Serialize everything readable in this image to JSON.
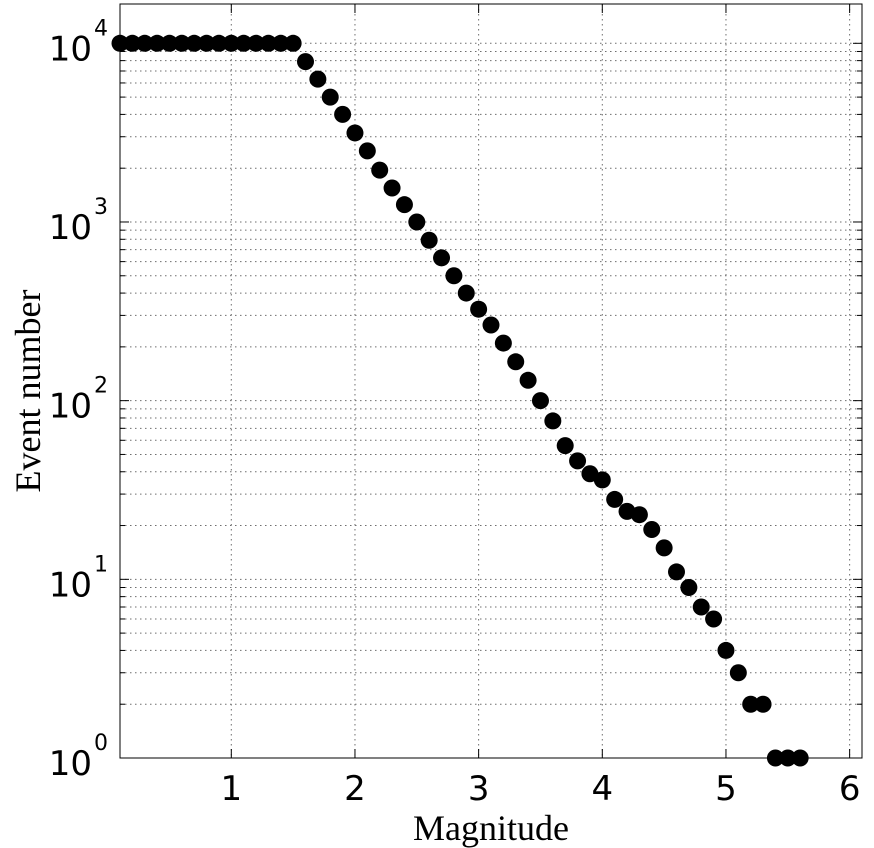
{
  "chart_data": {
    "type": "scatter",
    "xlabel": "Magnitude",
    "ylabel": "Event number",
    "xlim": [
      0.1,
      6.1
    ],
    "ylim": [
      1,
      10000
    ],
    "yscale": "log",
    "grid": true,
    "x_ticks": [
      {
        "value": 1,
        "label": "1"
      },
      {
        "value": 2,
        "label": "2"
      },
      {
        "value": 3,
        "label": "3"
      },
      {
        "value": 4,
        "label": "4"
      },
      {
        "value": 5,
        "label": "5"
      },
      {
        "value": 6,
        "label": "6"
      }
    ],
    "y_ticks": [
      {
        "value": 1,
        "base": "10",
        "exp": "0"
      },
      {
        "value": 10,
        "base": "10",
        "exp": "1"
      },
      {
        "value": 100,
        "base": "10",
        "exp": "2"
      },
      {
        "value": 1000,
        "base": "10",
        "exp": "3"
      },
      {
        "value": 10000,
        "base": "10",
        "exp": "4"
      }
    ],
    "marker_color": "#000000",
    "series": [
      {
        "x": [
          0.1,
          0.2,
          0.3,
          0.4,
          0.5,
          0.6,
          0.7,
          0.8,
          0.9,
          1.0,
          1.1,
          1.2,
          1.3,
          1.4,
          1.5,
          1.6,
          1.7,
          1.8,
          1.9,
          2.0,
          2.1,
          2.2,
          2.3,
          2.4,
          2.5,
          2.6,
          2.7,
          2.8,
          2.9,
          3.0,
          3.1,
          3.2,
          3.3,
          3.4,
          3.5,
          3.6,
          3.7,
          3.8,
          3.9,
          4.0,
          4.1,
          4.2,
          4.3,
          4.4,
          4.5,
          4.6,
          4.7,
          4.8,
          4.9,
          5.0,
          5.1,
          5.2,
          5.3,
          5.4,
          5.5,
          5.6
        ],
        "y": [
          10000,
          10000,
          10000,
          10000,
          10000,
          10000,
          10000,
          10000,
          10000,
          10000,
          10000,
          10000,
          10000,
          10000,
          10000,
          7900,
          6300,
          5000,
          4000,
          3150,
          2500,
          1950,
          1550,
          1250,
          1000,
          790,
          630,
          500,
          400,
          325,
          265,
          210,
          165,
          130,
          100,
          77,
          56,
          46,
          39,
          36,
          28,
          24,
          23,
          19,
          15,
          11,
          9,
          7,
          6,
          4,
          3,
          2,
          2,
          1,
          1,
          1
        ]
      }
    ]
  }
}
